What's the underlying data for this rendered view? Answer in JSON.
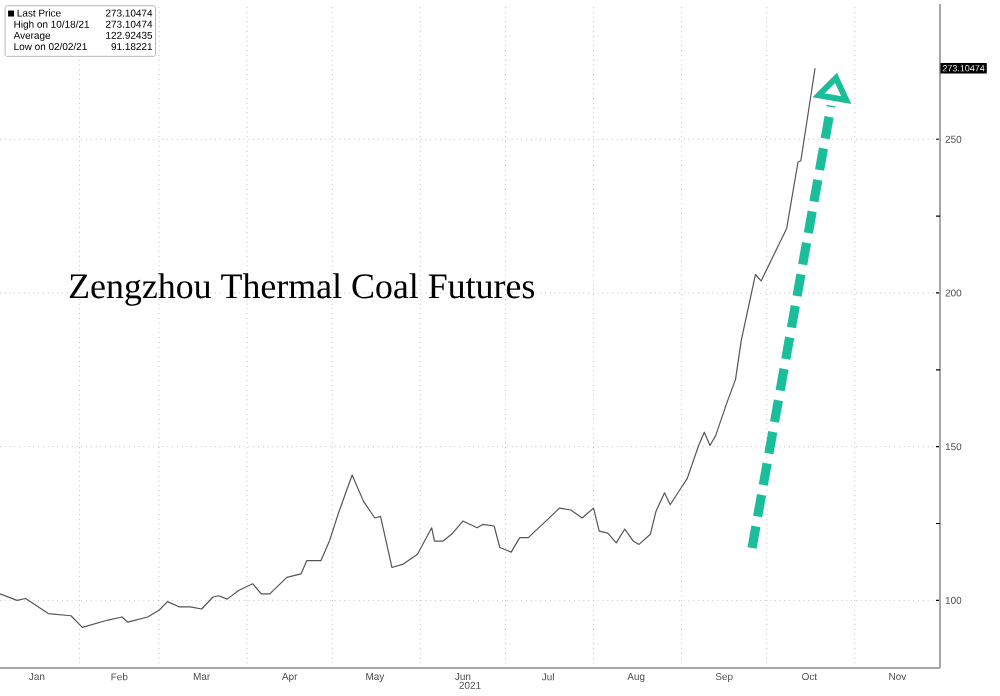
{
  "chart_data": {
    "type": "line",
    "title": "Zengzhou Thermal Coal Futures",
    "xlabel": "2021",
    "x": [
      "2021-01-04",
      "2021-01-10",
      "2021-01-13",
      "2021-01-21",
      "2021-01-29",
      "2021-02-02",
      "2021-02-11",
      "2021-02-16",
      "2021-02-18",
      "2021-02-25",
      "2021-03-01",
      "2021-03-04",
      "2021-03-08",
      "2021-03-12",
      "2021-03-16",
      "2021-03-20",
      "2021-03-22",
      "2021-03-25",
      "2021-03-29",
      "2021-04-03",
      "2021-04-06",
      "2021-04-09",
      "2021-04-15",
      "2021-04-20",
      "2021-04-22",
      "2021-04-27",
      "2021-04-30",
      "2021-05-03",
      "2021-05-08",
      "2021-05-12",
      "2021-05-16",
      "2021-05-18",
      "2021-05-22",
      "2021-05-26",
      "2021-05-31",
      "2021-06-05",
      "2021-06-06",
      "2021-06-09",
      "2021-06-12",
      "2021-06-16",
      "2021-06-21",
      "2021-06-23",
      "2021-06-27",
      "2021-06-29",
      "2021-07-03",
      "2021-07-06",
      "2021-07-09",
      "2021-07-14",
      "2021-07-20",
      "2021-07-24",
      "2021-07-28",
      "2021-08-01",
      "2021-08-03",
      "2021-08-06",
      "2021-08-09",
      "2021-08-12",
      "2021-08-15",
      "2021-08-17",
      "2021-08-21",
      "2021-08-23",
      "2021-08-26",
      "2021-08-28",
      "2021-08-31",
      "2021-09-03",
      "2021-09-07",
      "2021-09-09",
      "2021-09-11",
      "2021-09-13",
      "2021-09-17",
      "2021-09-20",
      "2021-09-22",
      "2021-09-27",
      "2021-09-29",
      "2021-10-08",
      "2021-10-12",
      "2021-10-13",
      "2021-10-18"
    ],
    "series": [
      {
        "name": "Last Price",
        "color": "#555555",
        "values": [
          102.1,
          100,
          100.6,
          95.7,
          95,
          91.2,
          93.6,
          94.6,
          92.9,
          94.6,
          96.8,
          99.6,
          97.9,
          97.9,
          97.2,
          101.1,
          101.5,
          100.4,
          103.2,
          105.4,
          102.1,
          102.1,
          107.5,
          108.6,
          112.9,
          112.9,
          119.3,
          127.9,
          140.8,
          132.2,
          126.8,
          127.3,
          110.7,
          111.8,
          115,
          123.6,
          119.3,
          119.3,
          121.5,
          125.8,
          123.6,
          124.7,
          124.2,
          117.2,
          115.7,
          120.4,
          120.4,
          124.7,
          130,
          129.4,
          126.8,
          130,
          122.5,
          121.9,
          118.7,
          123.2,
          119.3,
          118.2,
          121.5,
          129,
          135,
          131.1,
          135.4,
          139.7,
          150.4,
          154.7,
          150.4,
          153.6,
          164.4,
          171.9,
          184.5,
          206,
          203.9,
          221,
          242.6,
          243,
          273.1
        ]
      }
    ],
    "xlim": [
      "2021-01-04",
      "2021-12-01"
    ],
    "xticks": [
      {
        "value": "2021-02-01",
        "label": null
      },
      {
        "value": "2021-03-01",
        "label": null
      },
      {
        "value": "2021-04-01",
        "label": null
      },
      {
        "value": "2021-05-01",
        "label": null
      },
      {
        "value": "2021-06-01",
        "label": null
      },
      {
        "value": "2021-07-01",
        "label": null
      },
      {
        "value": "2021-08-01",
        "label": null
      },
      {
        "value": "2021-09-01",
        "label": null
      },
      {
        "value": "2021-10-01",
        "label": null
      },
      {
        "value": "2021-11-01",
        "label": null
      },
      {
        "value": "2021-01-17",
        "label": "Jan"
      },
      {
        "value": "2021-02-15",
        "label": "Feb"
      },
      {
        "value": "2021-03-16",
        "label": "Mar"
      },
      {
        "value": "2021-04-16",
        "label": "Apr"
      },
      {
        "value": "2021-05-16",
        "label": "May"
      },
      {
        "value": "2021-06-16",
        "label": "Jun"
      },
      {
        "value": "2021-07-16",
        "label": "Jul"
      },
      {
        "value": "2021-08-16",
        "label": "Aug"
      },
      {
        "value": "2021-09-16",
        "label": "Sep"
      },
      {
        "value": "2021-10-16",
        "label": "Oct"
      },
      {
        "value": "2021-11-16",
        "label": "Nov"
      }
    ],
    "ylim": [
      78,
      294
    ],
    "yticks": [
      100,
      150,
      200,
      250,
      {
        "value": 125,
        "label": null
      },
      {
        "value": 175,
        "label": null
      },
      {
        "value": 225,
        "label": null
      }
    ],
    "grid": true,
    "legend": "top left",
    "marker": "none",
    "line_style": "solid",
    "annotations": [
      "273.10474",
      "273.10474",
      "High on 10/18/21",
      "273.10474",
      "Average",
      "122.92435",
      "Low on 02/02/21",
      "91.18221"
    ]
  }
}
